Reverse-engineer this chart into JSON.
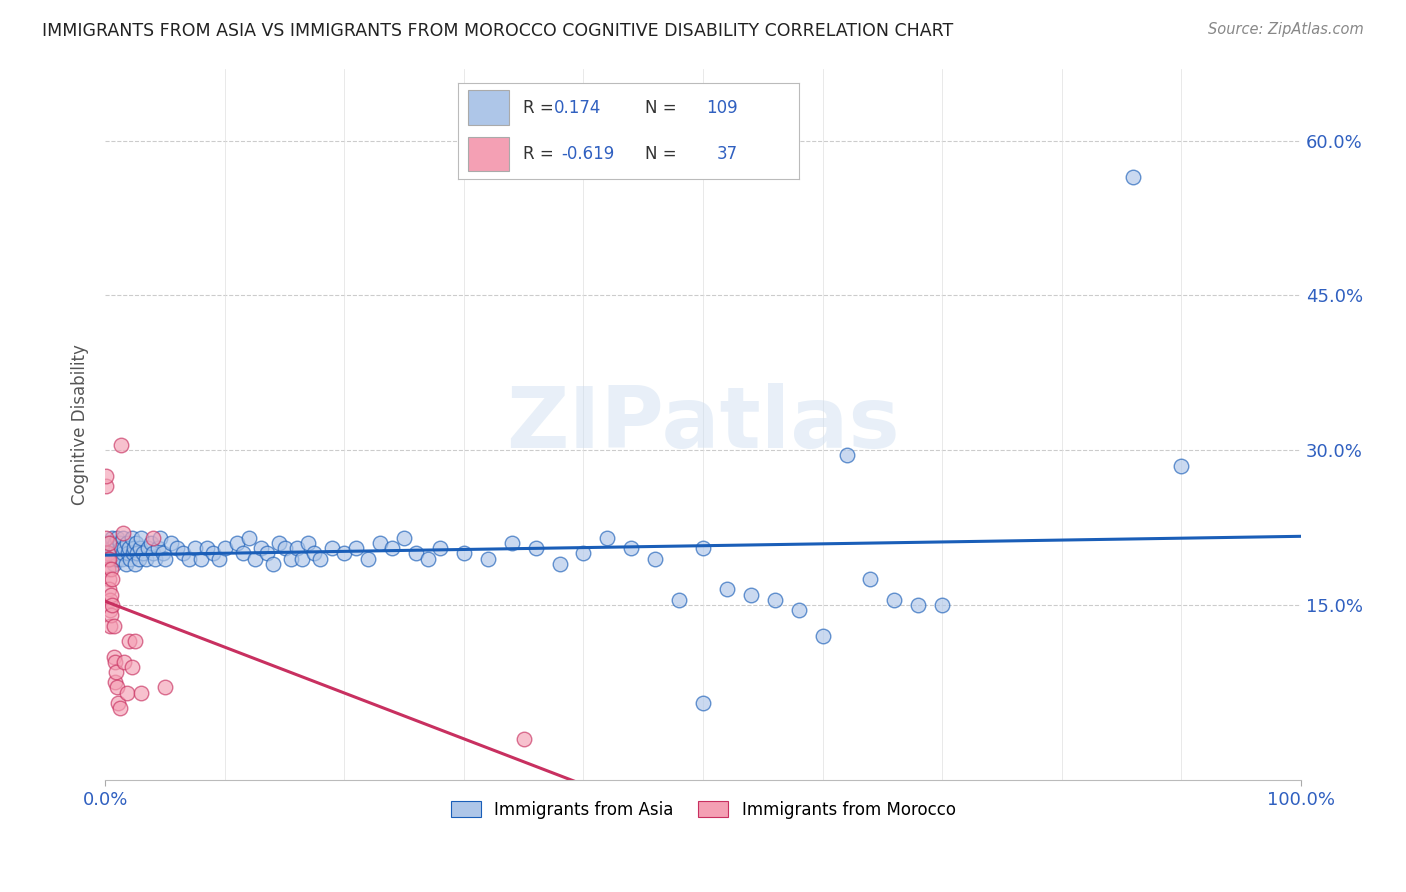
{
  "title": "IMMIGRANTS FROM ASIA VS IMMIGRANTS FROM MOROCCO COGNITIVE DISABILITY CORRELATION CHART",
  "source": "Source: ZipAtlas.com",
  "ylabel": "Cognitive Disability",
  "y_tick_labels": [
    "15.0%",
    "30.0%",
    "45.0%",
    "60.0%"
  ],
  "y_tick_values": [
    0.15,
    0.3,
    0.45,
    0.6
  ],
  "xlim": [
    0.0,
    1.0
  ],
  "ylim": [
    -0.02,
    0.67
  ],
  "watermark": "ZIPatlas",
  "asia_scatter_color": "#aec6e8",
  "morocco_scatter_color": "#f4a0b4",
  "asia_line_color": "#1a5eb8",
  "morocco_line_color": "#c83060",
  "background_color": "#ffffff",
  "grid_color": "#cccccc",
  "axis_color": "#3060c0",
  "legend_asia_R": "0.174",
  "legend_asia_N": "109",
  "legend_morocco_R": "-0.619",
  "legend_morocco_N": "37",
  "legend_label_asia": "Immigrants from Asia",
  "legend_label_morocco": "Immigrants from Morocco",
  "asia_points": [
    [
      0.001,
      0.2
    ],
    [
      0.002,
      0.205
    ],
    [
      0.002,
      0.195
    ],
    [
      0.003,
      0.21
    ],
    [
      0.003,
      0.195
    ],
    [
      0.004,
      0.205
    ],
    [
      0.004,
      0.2
    ],
    [
      0.005,
      0.21
    ],
    [
      0.005,
      0.195
    ],
    [
      0.006,
      0.215
    ],
    [
      0.006,
      0.205
    ],
    [
      0.007,
      0.2
    ],
    [
      0.007,
      0.19
    ],
    [
      0.008,
      0.21
    ],
    [
      0.008,
      0.2
    ],
    [
      0.009,
      0.205
    ],
    [
      0.009,
      0.195
    ],
    [
      0.01,
      0.215
    ],
    [
      0.01,
      0.2
    ],
    [
      0.011,
      0.195
    ],
    [
      0.012,
      0.21
    ],
    [
      0.013,
      0.205
    ],
    [
      0.014,
      0.195
    ],
    [
      0.015,
      0.215
    ],
    [
      0.015,
      0.2
    ],
    [
      0.016,
      0.205
    ],
    [
      0.017,
      0.19
    ],
    [
      0.018,
      0.21
    ],
    [
      0.019,
      0.2
    ],
    [
      0.02,
      0.205
    ],
    [
      0.021,
      0.195
    ],
    [
      0.022,
      0.215
    ],
    [
      0.023,
      0.2
    ],
    [
      0.024,
      0.205
    ],
    [
      0.025,
      0.19
    ],
    [
      0.026,
      0.21
    ],
    [
      0.027,
      0.2
    ],
    [
      0.028,
      0.195
    ],
    [
      0.029,
      0.205
    ],
    [
      0.03,
      0.215
    ],
    [
      0.032,
      0.2
    ],
    [
      0.034,
      0.195
    ],
    [
      0.036,
      0.205
    ],
    [
      0.038,
      0.21
    ],
    [
      0.04,
      0.2
    ],
    [
      0.042,
      0.195
    ],
    [
      0.044,
      0.205
    ],
    [
      0.046,
      0.215
    ],
    [
      0.048,
      0.2
    ],
    [
      0.05,
      0.195
    ],
    [
      0.055,
      0.21
    ],
    [
      0.06,
      0.205
    ],
    [
      0.065,
      0.2
    ],
    [
      0.07,
      0.195
    ],
    [
      0.075,
      0.205
    ],
    [
      0.08,
      0.195
    ],
    [
      0.085,
      0.205
    ],
    [
      0.09,
      0.2
    ],
    [
      0.095,
      0.195
    ],
    [
      0.1,
      0.205
    ],
    [
      0.11,
      0.21
    ],
    [
      0.115,
      0.2
    ],
    [
      0.12,
      0.215
    ],
    [
      0.125,
      0.195
    ],
    [
      0.13,
      0.205
    ],
    [
      0.135,
      0.2
    ],
    [
      0.14,
      0.19
    ],
    [
      0.145,
      0.21
    ],
    [
      0.15,
      0.205
    ],
    [
      0.155,
      0.195
    ],
    [
      0.16,
      0.205
    ],
    [
      0.165,
      0.195
    ],
    [
      0.17,
      0.21
    ],
    [
      0.175,
      0.2
    ],
    [
      0.18,
      0.195
    ],
    [
      0.19,
      0.205
    ],
    [
      0.2,
      0.2
    ],
    [
      0.21,
      0.205
    ],
    [
      0.22,
      0.195
    ],
    [
      0.23,
      0.21
    ],
    [
      0.24,
      0.205
    ],
    [
      0.25,
      0.215
    ],
    [
      0.26,
      0.2
    ],
    [
      0.27,
      0.195
    ],
    [
      0.28,
      0.205
    ],
    [
      0.3,
      0.2
    ],
    [
      0.32,
      0.195
    ],
    [
      0.34,
      0.21
    ],
    [
      0.36,
      0.205
    ],
    [
      0.38,
      0.19
    ],
    [
      0.4,
      0.2
    ],
    [
      0.42,
      0.215
    ],
    [
      0.44,
      0.205
    ],
    [
      0.46,
      0.195
    ],
    [
      0.48,
      0.155
    ],
    [
      0.5,
      0.205
    ],
    [
      0.52,
      0.165
    ],
    [
      0.54,
      0.16
    ],
    [
      0.56,
      0.155
    ],
    [
      0.58,
      0.145
    ],
    [
      0.6,
      0.12
    ],
    [
      0.62,
      0.295
    ],
    [
      0.64,
      0.175
    ],
    [
      0.66,
      0.155
    ],
    [
      0.68,
      0.15
    ],
    [
      0.7,
      0.15
    ],
    [
      0.5,
      0.055
    ],
    [
      0.86,
      0.565
    ],
    [
      0.9,
      0.285
    ]
  ],
  "morocco_points": [
    [
      0.001,
      0.215
    ],
    [
      0.001,
      0.265
    ],
    [
      0.001,
      0.275
    ],
    [
      0.002,
      0.2
    ],
    [
      0.002,
      0.195
    ],
    [
      0.002,
      0.185
    ],
    [
      0.003,
      0.21
    ],
    [
      0.003,
      0.195
    ],
    [
      0.003,
      0.175
    ],
    [
      0.003,
      0.165
    ],
    [
      0.004,
      0.155
    ],
    [
      0.004,
      0.145
    ],
    [
      0.004,
      0.13
    ],
    [
      0.005,
      0.185
    ],
    [
      0.005,
      0.16
    ],
    [
      0.005,
      0.14
    ],
    [
      0.006,
      0.175
    ],
    [
      0.006,
      0.15
    ],
    [
      0.007,
      0.13
    ],
    [
      0.007,
      0.1
    ],
    [
      0.008,
      0.095
    ],
    [
      0.008,
      0.075
    ],
    [
      0.009,
      0.085
    ],
    [
      0.01,
      0.07
    ],
    [
      0.011,
      0.055
    ],
    [
      0.012,
      0.05
    ],
    [
      0.013,
      0.305
    ],
    [
      0.015,
      0.22
    ],
    [
      0.016,
      0.095
    ],
    [
      0.018,
      0.065
    ],
    [
      0.02,
      0.115
    ],
    [
      0.022,
      0.09
    ],
    [
      0.025,
      0.115
    ],
    [
      0.03,
      0.065
    ],
    [
      0.04,
      0.215
    ],
    [
      0.05,
      0.07
    ],
    [
      0.35,
      0.02
    ]
  ]
}
